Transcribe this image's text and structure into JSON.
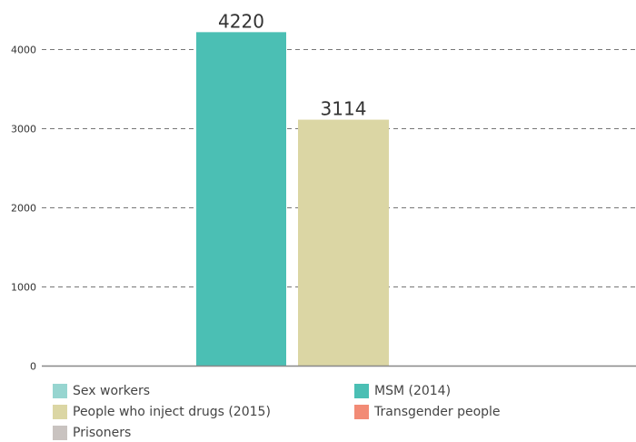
{
  "chart_data": {
    "type": "bar",
    "categories": [
      "Sex workers",
      "MSM (2014)",
      "People who inject drugs (2015)",
      "Transgender people",
      "Prisoners"
    ],
    "values": [
      null,
      4220,
      3114,
      null,
      null
    ],
    "data_labels": [
      "",
      "4220",
      "3114",
      "",
      ""
    ],
    "colors": [
      "#97d5d0",
      "#4bbfb4",
      "#dbd6a4",
      "#f28b76",
      "#c9c3c0"
    ],
    "ylim": [
      0,
      4500
    ],
    "yticks": [
      0,
      1000,
      2000,
      3000,
      4000
    ],
    "ytick_labels": [
      "0",
      "1000",
      "2000",
      "3000",
      "4000"
    ],
    "grid": true,
    "legend_position": "bottom",
    "title": "",
    "xlabel": "",
    "ylabel": ""
  }
}
